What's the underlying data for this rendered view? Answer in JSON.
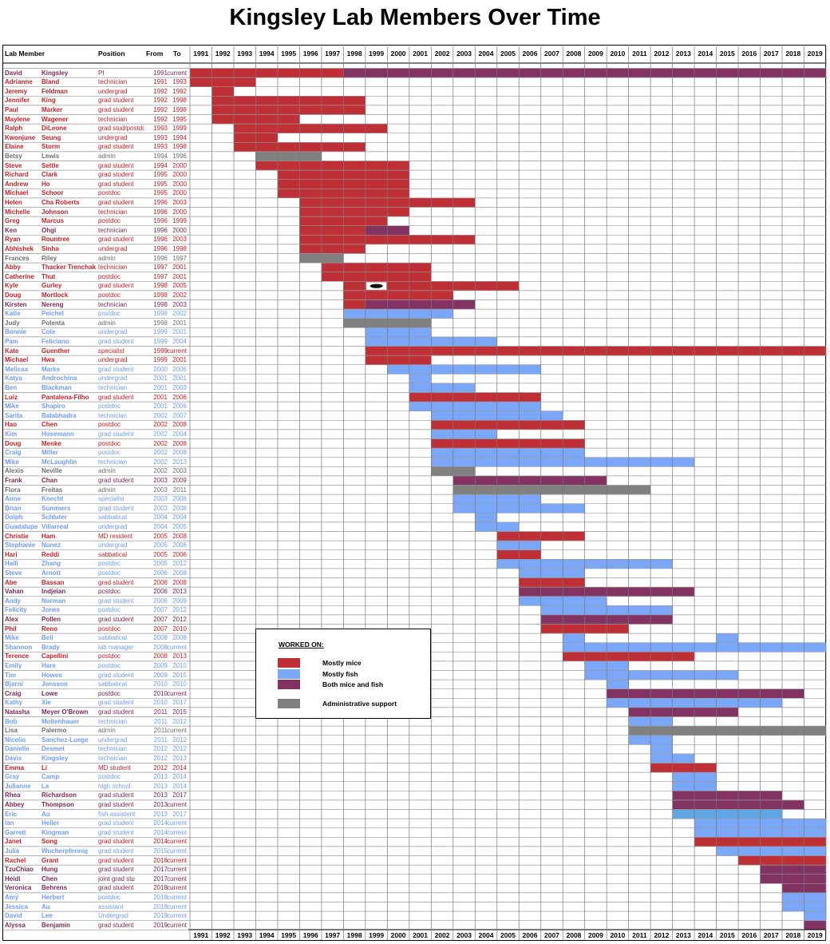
{
  "title": "Kingsley Lab Members Over Time",
  "headers": {
    "member": "Lab Member",
    "position": "Position",
    "from": "From",
    "to": "To"
  },
  "legend": {
    "title": "WORKED ON:",
    "items": [
      {
        "key": "m",
        "label": "Mostly mice"
      },
      {
        "key": "f",
        "label": "Mostly fish"
      },
      {
        "key": "b",
        "label": "Both mice and fish"
      },
      {
        "key": "a",
        "label": "Administrative support"
      }
    ]
  },
  "colors": {
    "m": "#bf3036",
    "f": "#7aa7f8",
    "b": "#833362",
    "a": "#808080",
    "f_alt": "#5ea6e4",
    "text_m": "#c0232b",
    "text_f": "#6e9cf0",
    "text_b": "#7a2a58",
    "text_a": "#6f6f6f"
  },
  "chart_data": {
    "type": "gantt",
    "title": "Kingsley Lab Members Over Time",
    "years": [
      "1991",
      "1992",
      "1993",
      "1994",
      "1995",
      "1996",
      "1997",
      "1998",
      "1999",
      "2000",
      "2001",
      "2002",
      "2003",
      "2004",
      "2005",
      "2006",
      "2007",
      "2008",
      "2009",
      "2010",
      "2011",
      "2012",
      "2013",
      "2014",
      "2015",
      "2016",
      "2017",
      "2018",
      "2019"
    ],
    "xlim": [
      1991,
      2019
    ],
    "grid": true,
    "members": [
      {
        "first": "David",
        "last": "Kingsley",
        "position": "PI",
        "from": "1991",
        "to": "current",
        "cat": "b",
        "segments": [
          [
            1991,
            1997,
            "m"
          ],
          [
            1998,
            2019,
            "b"
          ]
        ]
      },
      {
        "first": "Adrianne",
        "last": "Bland",
        "position": "technician",
        "from": "1991",
        "to": "1993",
        "cat": "m"
      },
      {
        "first": "Jeremy",
        "last": "Feldman",
        "position": "undergrad",
        "from": "1992",
        "to": "1992",
        "cat": "m"
      },
      {
        "first": "Jennifer",
        "last": "King",
        "position": "grad student",
        "from": "1992",
        "to": "1998",
        "cat": "m"
      },
      {
        "first": "Paul",
        "last": "Marker",
        "position": "grad student",
        "from": "1992",
        "to": "1998",
        "cat": "m"
      },
      {
        "first": "Maylene",
        "last": "Wagener",
        "position": "technician",
        "from": "1992",
        "to": "1995",
        "cat": "m"
      },
      {
        "first": "Ralph",
        "last": "DiLeone",
        "position": "grad stud/postdoc",
        "from": "1993",
        "to": "1999",
        "cat": "m"
      },
      {
        "first": "Kwonjune",
        "last": "Seung",
        "position": "undergrad",
        "from": "1993",
        "to": "1994",
        "cat": "m"
      },
      {
        "first": "Elaine",
        "last": "Storm",
        "position": "grad student",
        "from": "1993",
        "to": "1998",
        "cat": "m"
      },
      {
        "first": "Betsy",
        "last": "Lewis",
        "position": "admin",
        "from": "1994",
        "to": "1996",
        "cat": "a"
      },
      {
        "first": "Steve",
        "last": "Settle",
        "position": "grad student",
        "from": "1994",
        "to": "2000",
        "cat": "m"
      },
      {
        "first": "Richard",
        "last": "Clark",
        "position": "grad student",
        "from": "1995",
        "to": "2000",
        "cat": "m"
      },
      {
        "first": "Andrew",
        "last": "Ho",
        "position": "grad student",
        "from": "1995",
        "to": "2000",
        "cat": "m"
      },
      {
        "first": "Michael",
        "last": "Schoor",
        "position": "postdoc",
        "from": "1995",
        "to": "2000",
        "cat": "m"
      },
      {
        "first": "Helen",
        "last": "Cha Roberts",
        "position": "grad student",
        "from": "1996",
        "to": "2003",
        "cat": "m"
      },
      {
        "first": "Michelle",
        "last": "Johnson",
        "position": "technician",
        "from": "1996",
        "to": "2000",
        "cat": "m"
      },
      {
        "first": "Greg",
        "last": "Marcus",
        "position": "postdoc",
        "from": "1996",
        "to": "1999",
        "cat": "m"
      },
      {
        "first": "Ken",
        "last": "Ohgi",
        "position": "technician",
        "from": "1996",
        "to": "2000",
        "cat": "b",
        "segments": [
          [
            1996,
            1998,
            "m"
          ],
          [
            1999,
            2000,
            "b"
          ]
        ]
      },
      {
        "first": "Ryan",
        "last": "Rountree",
        "position": "grad student",
        "from": "1996",
        "to": "2003",
        "cat": "m"
      },
      {
        "first": "Abhishek",
        "last": "Sinha",
        "position": "undergrad",
        "from": "1996",
        "to": "1998",
        "cat": "m"
      },
      {
        "first": "Frances",
        "last": "Riley",
        "position": "admin",
        "from": "1996",
        "to": "1997",
        "cat": "a"
      },
      {
        "first": "Abby",
        "last": "Thacker Trenchak",
        "position": "technician",
        "from": "1997",
        "to": "2001",
        "cat": "m"
      },
      {
        "first": "Catherine",
        "last": "Thut",
        "position": "postdoc",
        "from": "1997",
        "to": "2001",
        "cat": "m"
      },
      {
        "first": "Kyle",
        "last": "Gurley",
        "position": "grad student",
        "from": "1998",
        "to": "2005",
        "cat": "m",
        "icon_year": 1999
      },
      {
        "first": "Doug",
        "last": "Mortlock",
        "position": "postdoc",
        "from": "1998",
        "to": "2002",
        "cat": "m"
      },
      {
        "first": "Kirsten",
        "last": "Nereng",
        "position": "technician",
        "from": "1998",
        "to": "2003",
        "cat": "b",
        "segments": [
          [
            1998,
            1998,
            "m"
          ],
          [
            1999,
            2003,
            "b"
          ]
        ]
      },
      {
        "first": "Katie",
        "last": "Peichel",
        "position": "postdoc",
        "from": "1998",
        "to": "2002",
        "cat": "f"
      },
      {
        "first": "Judy",
        "last": "Polenta",
        "position": "admin",
        "from": "1998",
        "to": "2001",
        "cat": "a"
      },
      {
        "first": "Bonnie",
        "last": "Cole",
        "position": "undergrad",
        "from": "1999",
        "to": "2001",
        "cat": "f"
      },
      {
        "first": "Pam",
        "last": "Feliciano",
        "position": "grad student",
        "from": "1999",
        "to": "2004",
        "cat": "f"
      },
      {
        "first": "Kate",
        "last": "Guenther",
        "position": "specialist",
        "from": "1999",
        "to": "current",
        "cat": "m"
      },
      {
        "first": "Michael",
        "last": "Hwa",
        "position": "undergrad",
        "from": "1999",
        "to": "2001",
        "cat": "m"
      },
      {
        "first": "Melissa",
        "last": "Marks",
        "position": "grad student",
        "from": "2000",
        "to": "2006",
        "cat": "f"
      },
      {
        "first": "Katya",
        "last": "Androchina",
        "position": "undergrad",
        "from": "2001",
        "to": "2001",
        "cat": "f"
      },
      {
        "first": "Ben",
        "last": "Blackman",
        "position": "technician",
        "from": "2001",
        "to": "2003",
        "cat": "f"
      },
      {
        "first": "Luiz",
        "last": "Pantalena-Filho",
        "position": "grad student",
        "from": "2001",
        "to": "2006",
        "cat": "m"
      },
      {
        "first": "Mike",
        "last": "Shapiro",
        "position": "postdoc",
        "from": "2001",
        "to": "2006",
        "cat": "f"
      },
      {
        "first": "Sarita",
        "last": "Balabhadra",
        "position": "technician",
        "from": "2002",
        "to": "2007",
        "cat": "f"
      },
      {
        "first": "Hao",
        "last": "Chen",
        "position": "postdoc",
        "from": "2002",
        "to": "2008",
        "cat": "m"
      },
      {
        "first": "Kim",
        "last": "Hosemann",
        "position": "grad student",
        "from": "2002",
        "to": "2004",
        "cat": "f"
      },
      {
        "first": "Doug",
        "last": "Menke",
        "position": "postdoc",
        "from": "2002",
        "to": "2008",
        "cat": "m"
      },
      {
        "first": "Craig",
        "last": "Miller",
        "position": "postdoc",
        "from": "2002",
        "to": "2008",
        "cat": "f"
      },
      {
        "first": "Mike",
        "last": "McLaughlin",
        "position": "technician",
        "from": "2002",
        "to": "2013",
        "cat": "f"
      },
      {
        "first": "Alexis",
        "last": "Neville",
        "position": "admin",
        "from": "2002",
        "to": "2003",
        "cat": "a"
      },
      {
        "first": "Frank",
        "last": "Chan",
        "position": "grad student",
        "from": "2003",
        "to": "2009",
        "cat": "b"
      },
      {
        "first": "Flora",
        "last": "Freitas",
        "position": "admin",
        "from": "2003",
        "to": "2011",
        "cat": "a"
      },
      {
        "first": "Anne",
        "last": "Knecht",
        "position": "specialist",
        "from": "2003",
        "to": "2006",
        "cat": "f"
      },
      {
        "first": "Brian",
        "last": "Summers",
        "position": "grad student",
        "from": "2003",
        "to": "2008",
        "cat": "f"
      },
      {
        "first": "Dolph",
        "last": "Schluter",
        "position": "sabbatical",
        "from": "2004",
        "to": "2004",
        "cat": "f"
      },
      {
        "first": "Guadalupe",
        "last": "Villarreal",
        "position": "undergrad",
        "from": "2004",
        "to": "2005",
        "cat": "f"
      },
      {
        "first": "Christie",
        "last": "Ham",
        "position": "MD resident",
        "from": "2005",
        "to": "2008",
        "cat": "m"
      },
      {
        "first": "Stephanie",
        "last": "Nunez",
        "position": "undergrad",
        "from": "2005",
        "to": "2006",
        "cat": "f"
      },
      {
        "first": "Hari",
        "last": "Reddi",
        "position": "sabbatical",
        "from": "2005",
        "to": "2006",
        "cat": "m"
      },
      {
        "first": "Haili",
        "last": "Zhang",
        "position": "postdoc",
        "from": "2005",
        "to": "2012",
        "cat": "f"
      },
      {
        "first": "Steve",
        "last": "Arnott",
        "position": "postdoc",
        "from": "2006",
        "to": "2008",
        "cat": "f"
      },
      {
        "first": "Abe",
        "last": "Bassan",
        "position": "grad student",
        "from": "2006",
        "to": "2008",
        "cat": "m"
      },
      {
        "first": "Vahan",
        "last": "Indjeian",
        "position": "postdoc",
        "from": "2006",
        "to": "2013",
        "cat": "b"
      },
      {
        "first": "Andy",
        "last": "Norman",
        "position": "grad student",
        "from": "2006",
        "to": "2009",
        "cat": "f"
      },
      {
        "first": "Felicity",
        "last": "Jones",
        "position": "postdoc",
        "from": "2007",
        "to": "2012",
        "cat": "f"
      },
      {
        "first": "Alex",
        "last": "Pollen",
        "position": "grad student",
        "from": "2007",
        "to": "2012",
        "cat": "b"
      },
      {
        "first": "Phil",
        "last": "Reno",
        "position": "postdoc",
        "from": "2007",
        "to": "2010",
        "cat": "m"
      },
      {
        "first": "Mike",
        "last": "Bell",
        "position": "sabbatical",
        "from": "2008",
        "to": "2008",
        "cat": "f",
        "segments": [
          [
            2008,
            2008,
            "f"
          ],
          [
            2015,
            2015,
            "f"
          ]
        ]
      },
      {
        "first": "Shannon",
        "last": "Brady",
        "position": "lab manager",
        "from": "2008",
        "to": "current",
        "cat": "f"
      },
      {
        "first": "Terence",
        "last": "Capellini",
        "position": "postdoc",
        "from": "2008",
        "to": "2013",
        "cat": "m"
      },
      {
        "first": "Emily",
        "last": "Hare",
        "position": "postdoc",
        "from": "2009",
        "to": "2010",
        "cat": "f"
      },
      {
        "first": "Tim",
        "last": "Howes",
        "position": "grad student",
        "from": "2009",
        "to": "2015",
        "cat": "f"
      },
      {
        "first": "Bjarni",
        "last": "Jonsson",
        "position": "sabbatical",
        "from": "2010",
        "to": "2010",
        "cat": "f"
      },
      {
        "first": "Craig",
        "last": "Lowe",
        "position": "postdoc",
        "from": "2010",
        "to": "current",
        "cat": "b",
        "segments": [
          [
            2010,
            2018,
            "b"
          ]
        ]
      },
      {
        "first": "Kathy",
        "last": "Xie",
        "position": "grad student",
        "from": "2010",
        "to": "2017",
        "cat": "f"
      },
      {
        "first": "Natasha",
        "last": "Meyer O'Brown",
        "position": "grad student",
        "from": "2011",
        "to": "2015",
        "cat": "b"
      },
      {
        "first": "Bob",
        "last": "Mollenhauer",
        "position": "technician",
        "from": "2011",
        "to": "2012",
        "cat": "f"
      },
      {
        "first": "Lisa",
        "last": "Palermo",
        "position": "admin",
        "from": "2011",
        "to": "current",
        "cat": "a"
      },
      {
        "first": "Nicelio",
        "last": "Sanchez-Luege",
        "position": "undergrad",
        "from": "2011",
        "to": "2012",
        "cat": "f"
      },
      {
        "first": "Danielle",
        "last": "Desmet",
        "position": "technician",
        "from": "2012",
        "to": "2012",
        "cat": "f"
      },
      {
        "first": "Davis",
        "last": "Kingsley",
        "position": "technician",
        "from": "2012",
        "to": "2013",
        "cat": "f"
      },
      {
        "first": "Emma",
        "last": "Li",
        "position": "MD student",
        "from": "2012",
        "to": "2014",
        "cat": "m"
      },
      {
        "first": "Gray",
        "last": "Camp",
        "position": "postdoc",
        "from": "2013",
        "to": "2014",
        "cat": "f"
      },
      {
        "first": "Julianne",
        "last": "Le",
        "position": "high school",
        "from": "2013",
        "to": "2014",
        "cat": "f"
      },
      {
        "first": "Rhea",
        "last": "Richardson",
        "position": "grad student",
        "from": "2013",
        "to": "2017",
        "cat": "b"
      },
      {
        "first": "Abbey",
        "last": "Thompson",
        "position": "grad student",
        "from": "2013",
        "to": "current",
        "cat": "b",
        "segments": [
          [
            2013,
            2018,
            "b"
          ]
        ]
      },
      {
        "first": "Eric",
        "last": "Au",
        "position": "fish assistent",
        "from": "2013",
        "to": "2017",
        "cat": "f",
        "segments": [
          [
            2013,
            2017,
            "f_alt"
          ]
        ]
      },
      {
        "first": "Ian",
        "last": "Heller",
        "position": "grad student",
        "from": "2014",
        "to": "current",
        "cat": "f"
      },
      {
        "first": "Garrett",
        "last": "Kingman",
        "position": "grad student",
        "from": "2014",
        "to": "current",
        "cat": "f"
      },
      {
        "first": "Janet",
        "last": "Song",
        "position": "grad student",
        "from": "2014",
        "to": "current",
        "cat": "m"
      },
      {
        "first": "Julia",
        "last": "Wucherpfennig",
        "position": "grad student",
        "from": "2015",
        "to": "current",
        "cat": "f"
      },
      {
        "first": "Rachel",
        "last": "Grant",
        "position": "grad student",
        "from": "2016",
        "to": "current",
        "cat": "m"
      },
      {
        "first": "TzuChiao",
        "last": "Hung",
        "position": "grad student",
        "from": "2017",
        "to": "current",
        "cat": "b"
      },
      {
        "first": "Heidi",
        "last": "Chen",
        "position": "joint grad stu",
        "from": "2017",
        "to": "current",
        "cat": "b"
      },
      {
        "first": "Veronica",
        "last": "Behrens",
        "position": "grad student",
        "from": "2018",
        "to": "current",
        "cat": "b"
      },
      {
        "first": "Amy",
        "last": "Herbert",
        "position": "postdoc",
        "from": "2018",
        "to": "current",
        "cat": "f"
      },
      {
        "first": "Jessica",
        "last": "Au",
        "position": "assistant",
        "from": "2018",
        "to": "current",
        "cat": "f"
      },
      {
        "first": "David",
        "last": "Lee",
        "position": "Undergrad",
        "from": "2019",
        "to": "current",
        "cat": "f"
      },
      {
        "first": "Alyssa",
        "last": "Benjamin",
        "position": "grad student",
        "from": "2019",
        "to": "current",
        "cat": "b"
      }
    ]
  }
}
